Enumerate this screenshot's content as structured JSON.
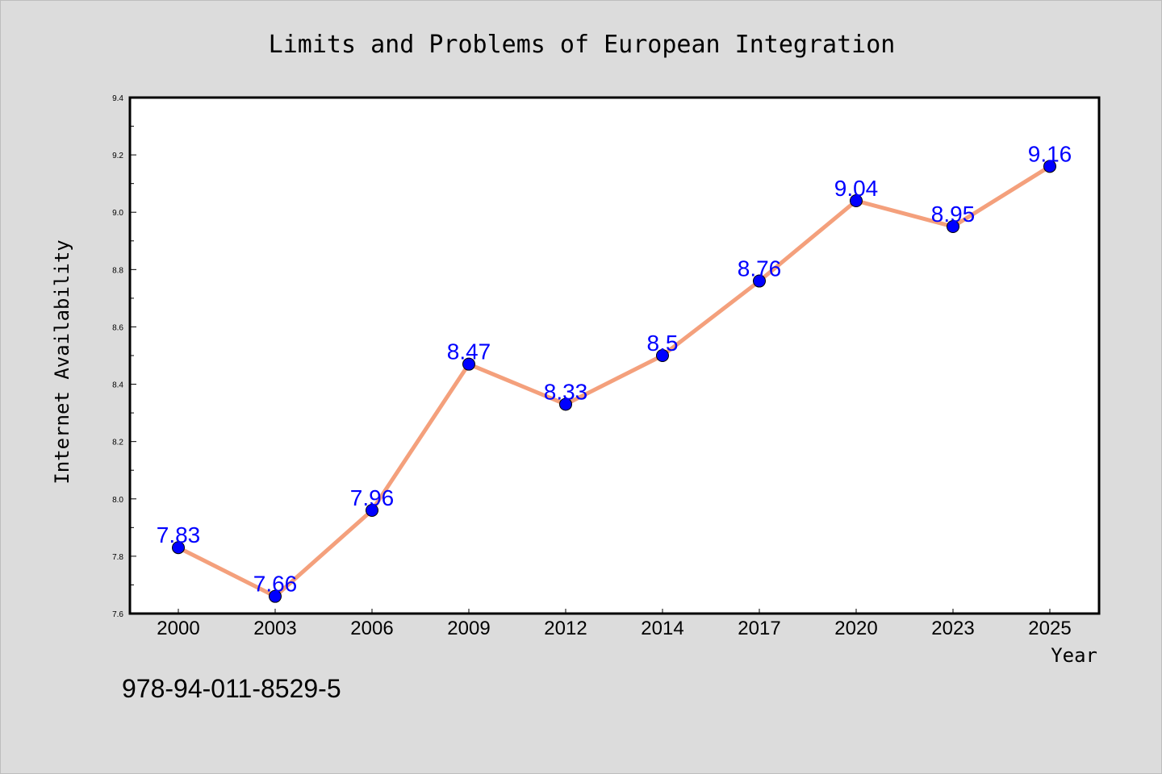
{
  "chart_data": {
    "type": "line",
    "title": "Limits and Problems of European Integration",
    "xlabel": "Year",
    "ylabel": "Internet Availability",
    "categories": [
      "2000",
      "2003",
      "2006",
      "2009",
      "2012",
      "2014",
      "2017",
      "2020",
      "2023",
      "2025"
    ],
    "series": [
      {
        "values": [
          7.83,
          7.66,
          7.96,
          8.47,
          8.33,
          8.5,
          8.76,
          9.04,
          8.95,
          9.16
        ]
      }
    ],
    "data_labels": [
      "7.83",
      "7.66",
      "7.96",
      "8.47",
      "8.33",
      "8.5",
      "8.76",
      "9.04",
      "8.95",
      "9.16"
    ],
    "ylim": [
      7.6,
      9.4
    ],
    "yticks": [
      "7.6",
      "7.8",
      "8.0",
      "8.2",
      "8.4",
      "8.6",
      "8.8",
      "9.0",
      "9.2",
      "9.4"
    ],
    "grid": false,
    "legend": "none",
    "colors": {
      "line": "#f4a07c",
      "marker": "#0000ff",
      "label": "#0000ff",
      "background": "#dcdcdc",
      "plot_background": "#ffffff"
    }
  },
  "footer": {
    "isbn": "978-94-011-8529-5"
  }
}
